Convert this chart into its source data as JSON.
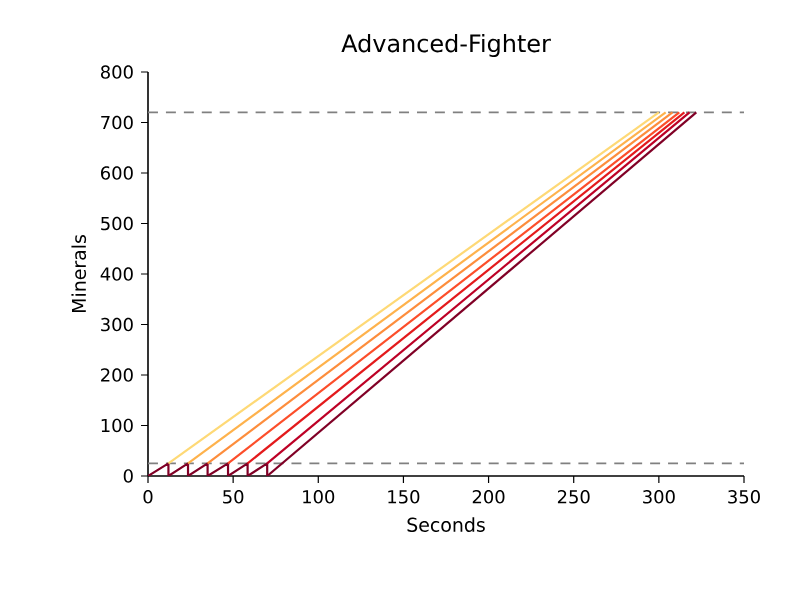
{
  "chart_data": {
    "type": "line",
    "title": "Advanced-Fighter",
    "xlabel": "Seconds",
    "ylabel": "Minerals",
    "xlim": [
      0,
      350
    ],
    "ylim": [
      0,
      800
    ],
    "xticks": [
      0,
      50,
      100,
      150,
      200,
      250,
      300,
      350
    ],
    "yticks": [
      0,
      100,
      200,
      300,
      400,
      500,
      600,
      700,
      800
    ],
    "grid": false,
    "marker": "none",
    "line_style": "solid",
    "series": [
      {
        "color": "#800026",
        "x": [
          0,
          12,
          12,
          23.5,
          23.5,
          35,
          35,
          47,
          47,
          58.5,
          58.5,
          70,
          70
        ],
        "values": [
          0,
          25,
          0,
          25,
          0,
          25,
          0,
          25,
          0,
          25,
          0,
          25,
          0
        ]
      },
      {
        "color": "#fed976",
        "x": [
          12,
          300
        ],
        "values": [
          25,
          720
        ]
      },
      {
        "color": "#feb24c",
        "x": [
          23.5,
          304
        ],
        "values": [
          25,
          720
        ]
      },
      {
        "color": "#fd8d3c",
        "x": [
          35,
          308
        ],
        "values": [
          25,
          720
        ]
      },
      {
        "color": "#fc4e2a",
        "x": [
          47,
          312
        ],
        "values": [
          25,
          720
        ]
      },
      {
        "color": "#e31a1c",
        "x": [
          58.5,
          315
        ],
        "values": [
          25,
          720
        ]
      },
      {
        "color": "#bd0026",
        "x": [
          70,
          318
        ],
        "values": [
          25,
          720
        ]
      },
      {
        "color": "#800026",
        "x": [
          70,
          322
        ],
        "values": [
          0,
          720
        ]
      }
    ],
    "ref_lines": [
      {
        "axis": "y",
        "value": 720,
        "color": "#808080",
        "line_style": "dashed"
      },
      {
        "axis": "y",
        "value": 25,
        "color": "#808080",
        "line_style": "dashed"
      }
    ]
  }
}
